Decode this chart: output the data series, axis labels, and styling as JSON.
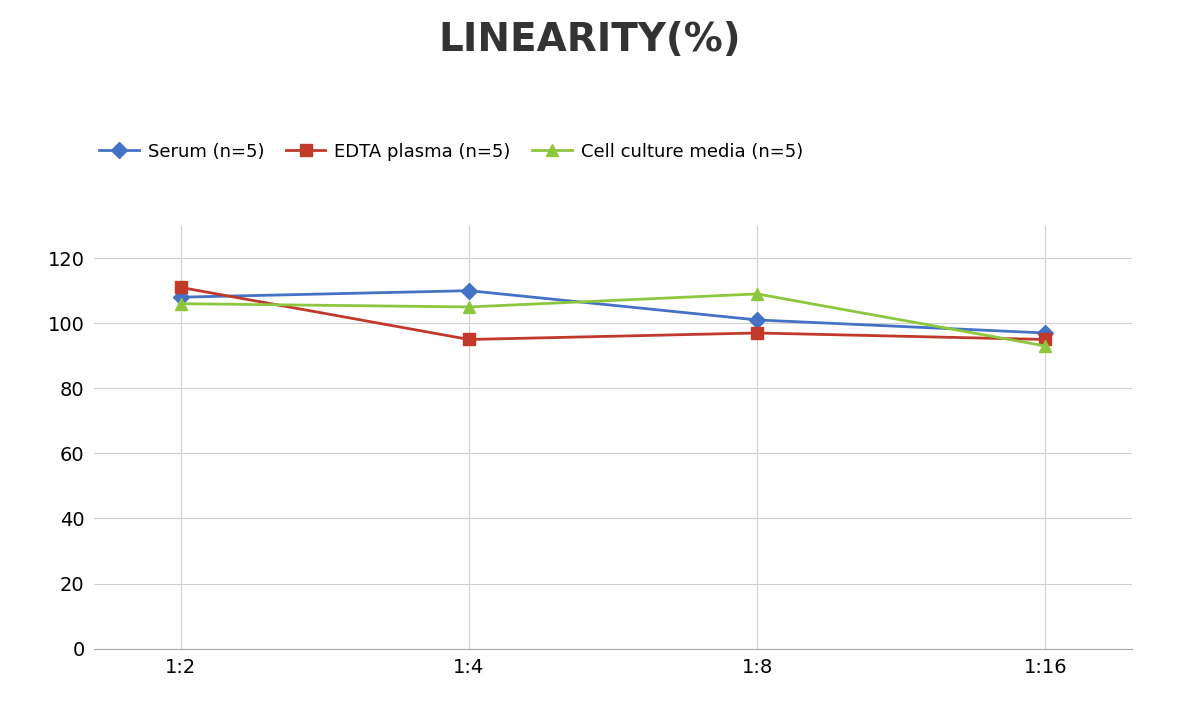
{
  "title": "LINEARITY(%)",
  "x_labels": [
    "1:2",
    "1:4",
    "1:8",
    "1:16"
  ],
  "x_positions": [
    0,
    1,
    2,
    3
  ],
  "series": [
    {
      "label": "Serum (n=5)",
      "values": [
        108,
        110,
        101,
        97
      ],
      "color": "#4472C4",
      "marker": "D",
      "markersize": 8,
      "linewidth": 2
    },
    {
      "label": "EDTA plasma (n=5)",
      "values": [
        111,
        95,
        97,
        95
      ],
      "color": "#C0392B",
      "marker": "s",
      "markersize": 8,
      "linewidth": 2
    },
    {
      "label": "Cell culture media (n=5)",
      "values": [
        106,
        105,
        109,
        93
      ],
      "color": "#8DC63F",
      "marker": "^",
      "markersize": 8,
      "linewidth": 2
    }
  ],
  "ylim": [
    0,
    130
  ],
  "yticks": [
    0,
    20,
    40,
    60,
    80,
    100,
    120
  ],
  "title_fontsize": 28,
  "legend_fontsize": 13,
  "tick_fontsize": 14,
  "background_color": "#ffffff",
  "grid_color": "#d0d0d0"
}
